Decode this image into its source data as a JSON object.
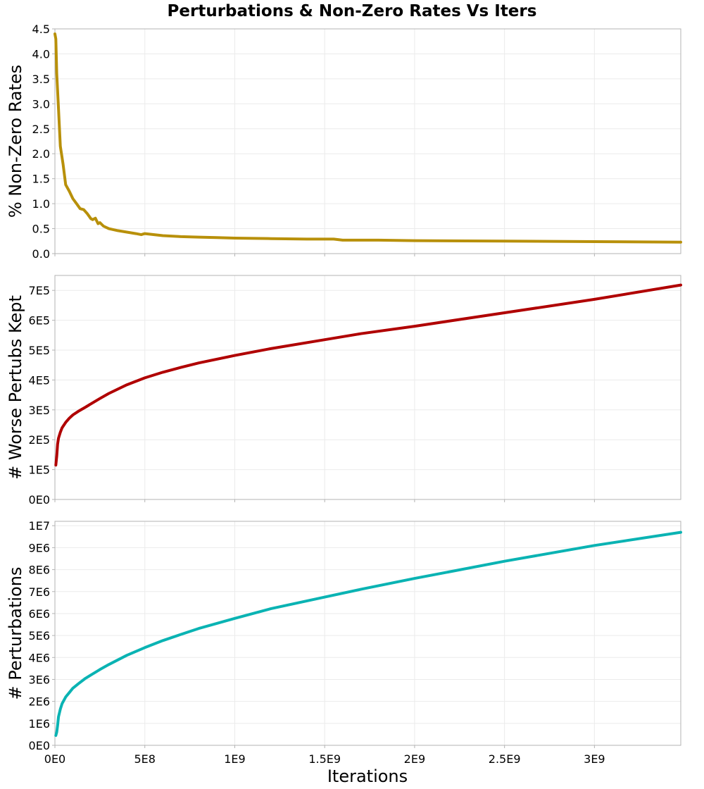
{
  "title": "Perturbations & Non-Zero Rates Vs Iters",
  "xlabel": "Iterations",
  "x_ticks": {
    "values": [
      0,
      500000000,
      1000000000,
      1500000000,
      2000000000,
      2500000000,
      3000000000
    ],
    "labels": [
      "0E0",
      "5E8",
      "1E9",
      "1.5E9",
      "2E9",
      "2.5E9",
      "3E9"
    ]
  },
  "chart_data": [
    {
      "type": "line",
      "ylabel": "% Non-Zero Rates",
      "xlim": [
        0,
        3480000000
      ],
      "ylim": [
        0,
        4.5
      ],
      "y_ticks": [
        0,
        0.5,
        1.0,
        1.5,
        2.0,
        2.5,
        3.0,
        3.5,
        4.0,
        4.5
      ],
      "y_tick_labels": [
        "0.0",
        "0.5",
        "1.0",
        "1.5",
        "2.0",
        "2.5",
        "3.0",
        "3.5",
        "4.0",
        "4.5"
      ],
      "grid": true,
      "color": "#b8900a",
      "x": [
        0,
        5000000,
        10000000,
        20000000,
        30000000,
        45000000,
        60000000,
        80000000,
        100000000,
        120000000,
        140000000,
        160000000,
        180000000,
        200000000,
        210000000,
        225000000,
        240000000,
        250000000,
        270000000,
        300000000,
        350000000,
        400000000,
        450000000,
        480000000,
        500000000,
        600000000,
        700000000,
        800000000,
        900000000,
        1000000000,
        1200000000,
        1400000000,
        1550000000,
        1600000000,
        1800000000,
        2000000000,
        2500000000,
        3000000000,
        3480000000
      ],
      "y": [
        4.4,
        4.3,
        3.6,
        2.9,
        2.15,
        1.8,
        1.38,
        1.25,
        1.1,
        1.0,
        0.9,
        0.88,
        0.8,
        0.7,
        0.68,
        0.71,
        0.6,
        0.62,
        0.55,
        0.5,
        0.46,
        0.43,
        0.4,
        0.38,
        0.4,
        0.36,
        0.34,
        0.33,
        0.32,
        0.31,
        0.3,
        0.29,
        0.29,
        0.27,
        0.27,
        0.26,
        0.25,
        0.24,
        0.23
      ]
    },
    {
      "type": "line",
      "ylabel": "# Worse Pertubs Kept",
      "xlim": [
        0,
        3480000000
      ],
      "ylim": [
        0,
        750000
      ],
      "y_ticks": [
        0,
        100000,
        200000,
        300000,
        400000,
        500000,
        600000,
        700000
      ],
      "y_tick_labels": [
        "0E0",
        "1E5",
        "2E5",
        "3E5",
        "4E5",
        "5E5",
        "6E5",
        "7E5"
      ],
      "grid": true,
      "color": "#b00000",
      "x": [
        5000000,
        10000000,
        15000000,
        20000000,
        30000000,
        40000000,
        60000000,
        80000000,
        100000000,
        130000000,
        170000000,
        200000000,
        250000000,
        300000000,
        400000000,
        500000000,
        600000000,
        700000000,
        800000000,
        1000000000,
        1200000000,
        1500000000,
        1700000000,
        2000000000,
        2500000000,
        3000000000,
        3480000000
      ],
      "y": [
        115000,
        145000,
        185000,
        205000,
        225000,
        240000,
        258000,
        272000,
        283000,
        295000,
        309000,
        320000,
        338000,
        355000,
        384000,
        407000,
        426000,
        442000,
        457000,
        482000,
        505000,
        535000,
        555000,
        580000,
        625000,
        670000,
        718000
      ]
    },
    {
      "type": "line",
      "ylabel": "# Perturbations",
      "xlim": [
        0,
        3480000000
      ],
      "ylim": [
        0,
        10200000
      ],
      "y_ticks": [
        0,
        1000000,
        2000000,
        3000000,
        4000000,
        5000000,
        6000000,
        7000000,
        8000000,
        9000000,
        10000000
      ],
      "y_tick_labels": [
        "0E0",
        "1E6",
        "2E6",
        "3E6",
        "4E6",
        "5E6",
        "6E6",
        "7E6",
        "8E6",
        "9E6",
        "1E7"
      ],
      "grid": true,
      "color": "#0ab3b3",
      "x": [
        5000000,
        10000000,
        15000000,
        20000000,
        30000000,
        40000000,
        60000000,
        80000000,
        100000000,
        130000000,
        170000000,
        200000000,
        250000000,
        300000000,
        400000000,
        500000000,
        600000000,
        700000000,
        800000000,
        1000000000,
        1200000000,
        1500000000,
        1700000000,
        2000000000,
        2500000000,
        3000000000,
        3480000000
      ],
      "y": [
        450000,
        600000,
        900000,
        1300000,
        1650000,
        1900000,
        2200000,
        2400000,
        2600000,
        2800000,
        3050000,
        3200000,
        3450000,
        3680000,
        4100000,
        4450000,
        4770000,
        5050000,
        5320000,
        5780000,
        6220000,
        6750000,
        7100000,
        7600000,
        8380000,
        9100000,
        9700000
      ]
    }
  ]
}
